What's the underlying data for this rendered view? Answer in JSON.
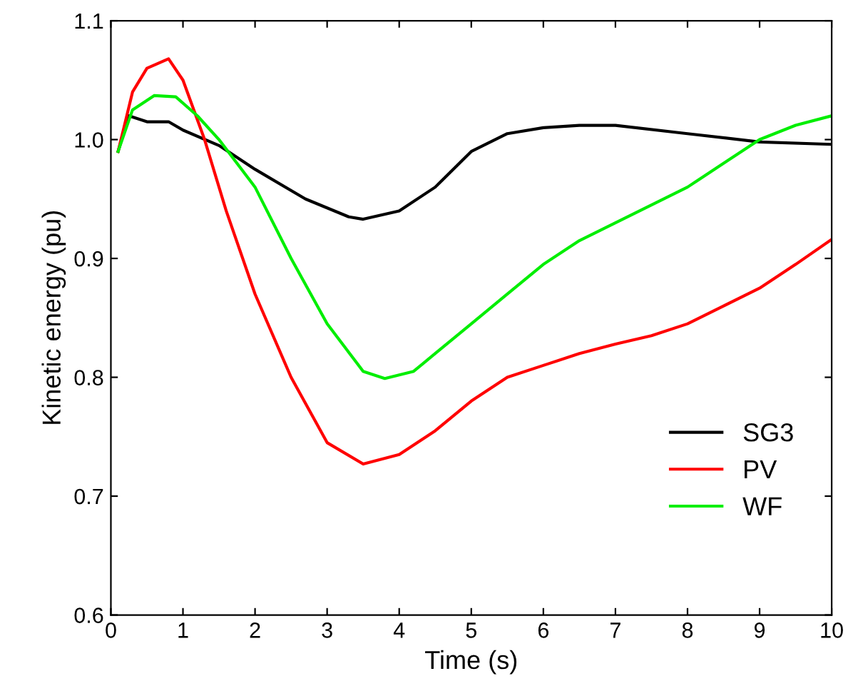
{
  "chart_data": {
    "type": "line",
    "xlabel": "Time (s)",
    "ylabel": "Kinetic energy (pu)",
    "xlim": [
      0,
      10
    ],
    "ylim": [
      0.6,
      1.1
    ],
    "xticks": [
      0,
      1,
      2,
      3,
      4,
      5,
      6,
      7,
      8,
      9,
      10
    ],
    "yticks": [
      0.6,
      0.7,
      0.8,
      0.9,
      {
        "value": 1.0,
        "label": "1.0"
      },
      1.1
    ],
    "grid": false,
    "legend": "bottom right",
    "marker": "none",
    "line_style": "solid",
    "series": [
      {
        "name": "SG3",
        "color": "#000000",
        "x": [
          0.1,
          0.25,
          0.5,
          0.8,
          1.0,
          1.5,
          2.0,
          2.7,
          3.3,
          3.5,
          4.0,
          4.5,
          5.0,
          5.5,
          6.0,
          6.5,
          7.0,
          8.0,
          9.0,
          10.0
        ],
        "values": [
          0.99,
          1.02,
          1.015,
          1.015,
          1.008,
          0.995,
          0.975,
          0.95,
          0.935,
          0.933,
          0.94,
          0.96,
          0.99,
          1.005,
          1.01,
          1.012,
          1.012,
          1.005,
          0.998,
          0.996
        ]
      },
      {
        "name": "PV",
        "color": "#ff0000",
        "x": [
          0.1,
          0.3,
          0.5,
          0.8,
          1.0,
          1.3,
          1.6,
          2.0,
          2.5,
          3.0,
          3.5,
          4.0,
          4.5,
          5.0,
          5.5,
          6.0,
          6.5,
          7.0,
          7.5,
          8.0,
          8.5,
          9.0,
          9.5,
          10.0
        ],
        "values": [
          0.99,
          1.04,
          1.06,
          1.068,
          1.05,
          1.0,
          0.94,
          0.87,
          0.8,
          0.745,
          0.727,
          0.735,
          0.755,
          0.78,
          0.8,
          0.81,
          0.82,
          0.828,
          0.835,
          0.845,
          0.86,
          0.875,
          0.895,
          0.916
        ]
      },
      {
        "name": "WF",
        "color": "#00ee00",
        "x": [
          0.1,
          0.3,
          0.6,
          0.9,
          1.2,
          1.5,
          2.0,
          2.5,
          3.0,
          3.5,
          3.8,
          4.2,
          4.5,
          5.0,
          5.5,
          6.0,
          6.5,
          7.0,
          7.5,
          8.0,
          8.5,
          9.0,
          9.5,
          10.0
        ],
        "values": [
          0.99,
          1.025,
          1.037,
          1.036,
          1.02,
          1.0,
          0.96,
          0.9,
          0.845,
          0.805,
          0.799,
          0.805,
          0.82,
          0.845,
          0.87,
          0.895,
          0.915,
          0.93,
          0.945,
          0.96,
          0.98,
          1.0,
          1.012,
          1.02
        ]
      }
    ]
  }
}
